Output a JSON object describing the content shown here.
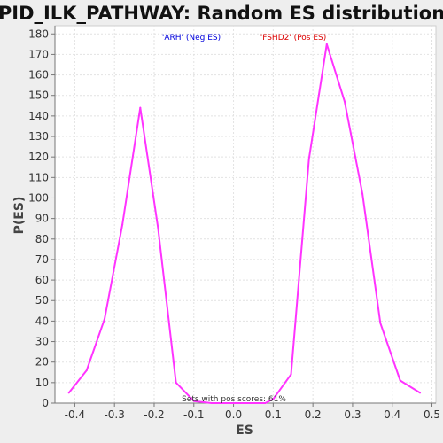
{
  "chart_data": {
    "type": "line",
    "title": "PID_ILK_PATHWAY: Random ES distribution",
    "xlabel": "ES",
    "ylabel": "P(ES)",
    "xlim": [
      -0.45,
      0.51
    ],
    "ylim": [
      0,
      184
    ],
    "x_ticks": [
      -0.4,
      -0.3,
      -0.2,
      -0.1,
      0.0,
      0.1,
      0.2,
      0.3,
      0.4,
      0.5
    ],
    "x_tick_labels": [
      "-0.4",
      "-0.3",
      "-0.2",
      "-0.1",
      "0.0",
      "0.1",
      "0.2",
      "0.3",
      "0.4",
      "0.5"
    ],
    "y_ticks": [
      0,
      10,
      20,
      30,
      40,
      50,
      60,
      70,
      80,
      90,
      100,
      110,
      120,
      130,
      140,
      150,
      160,
      170,
      180
    ],
    "grid": true,
    "line_color": "#ff33ff",
    "series": [
      {
        "x": [
          -0.415,
          -0.37,
          -0.325,
          -0.28,
          -0.235,
          -0.19,
          -0.145,
          -0.1,
          -0.055,
          -0.01,
          0.035,
          0.08,
          0.1,
          0.145,
          0.19,
          0.235,
          0.28,
          0.325,
          0.37,
          0.42,
          0.47
        ],
        "values": [
          5,
          16,
          41,
          87,
          144,
          85,
          10,
          1,
          0,
          0,
          0,
          0,
          2,
          14,
          119,
          175,
          147,
          102,
          39,
          11,
          5
        ]
      }
    ],
    "annotations": [
      {
        "text": "'ARH' (Neg ES)",
        "color": "#0000dd"
      },
      {
        "text": "'FSHD2' (Pos ES)",
        "color": "#dd0000"
      }
    ],
    "footer": "Sets with pos scores: 61%"
  }
}
